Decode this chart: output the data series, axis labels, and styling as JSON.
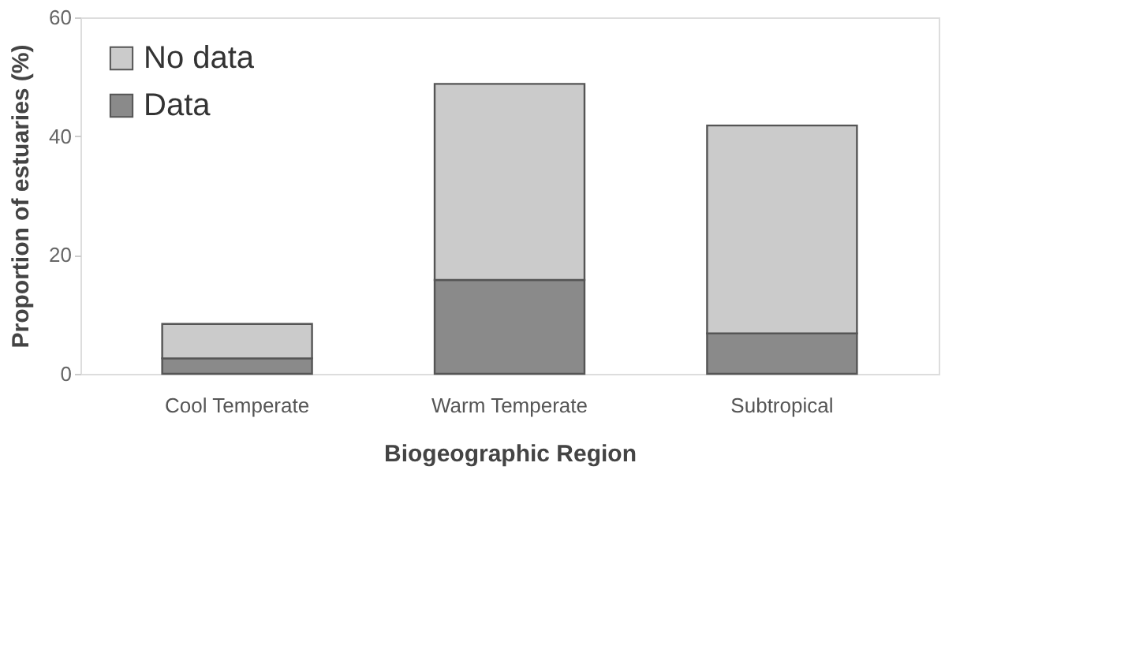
{
  "chart_data": {
    "type": "bar",
    "stacked": true,
    "xlabel": "Biogeographic Region",
    "ylabel": "Proportion of estuaries (%)",
    "categories": [
      "Cool Temperate",
      "Warm Temperate",
      "Subtropical"
    ],
    "series": [
      {
        "name": "Data",
        "color": "#8a8a8a",
        "values": [
          2.6,
          15.8,
          6.8
        ]
      },
      {
        "name": "No data",
        "color": "#cbcbcb",
        "values": [
          5.8,
          33,
          35
        ]
      }
    ],
    "ylim": [
      0,
      60
    ],
    "yticks": [
      0,
      20,
      40,
      60
    ],
    "grid": false,
    "legend": "top left"
  }
}
